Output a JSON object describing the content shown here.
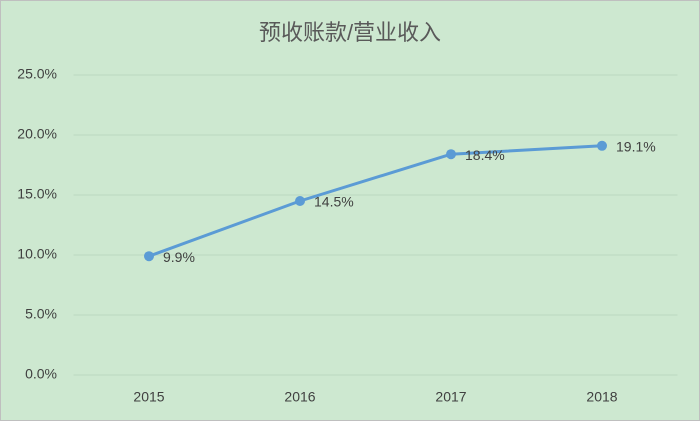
{
  "chart_data": {
    "type": "line",
    "title": "预收账款/营业收入",
    "categories": [
      "2015",
      "2016",
      "2017",
      "2018"
    ],
    "values": [
      9.9,
      14.5,
      18.4,
      19.1
    ],
    "value_labels": [
      "9.9%",
      "14.5%",
      "18.4%",
      "19.1%"
    ],
    "color": "#5b9bd5",
    "ylim": [
      0,
      25
    ],
    "yticks": [
      {
        "value": 0,
        "label": "0.0%"
      },
      {
        "value": 5,
        "label": "5.0%"
      },
      {
        "value": 10,
        "label": "10.0%"
      },
      {
        "value": 15,
        "label": "15.0%"
      },
      {
        "value": 20,
        "label": "20.0%"
      },
      {
        "value": 25,
        "label": "25.0%"
      }
    ],
    "grid": true
  }
}
